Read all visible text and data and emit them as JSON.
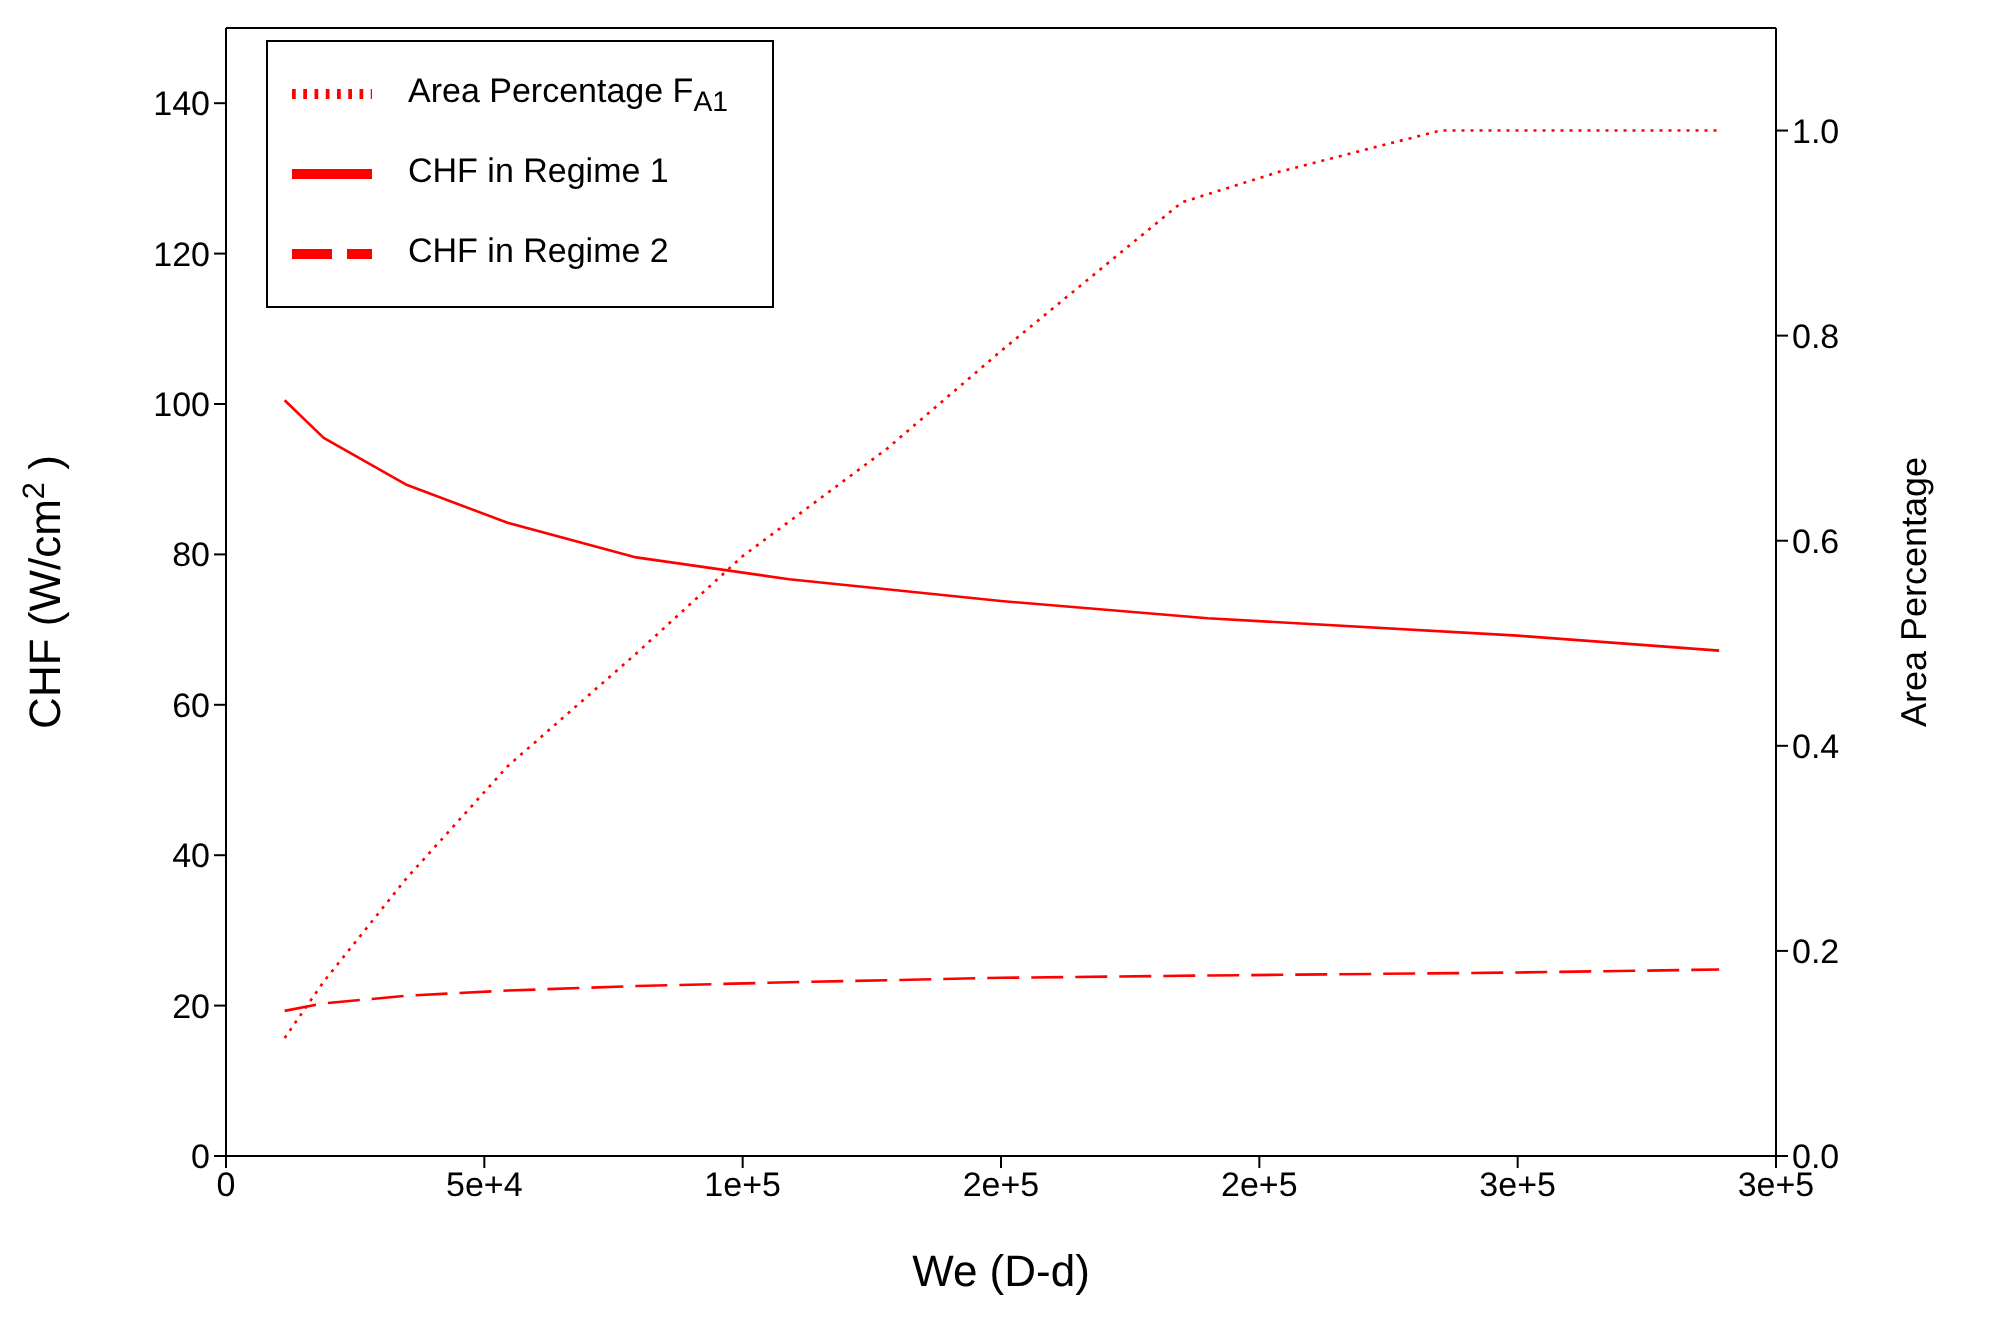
{
  "chart_data": {
    "type": "line",
    "xlabel": "We (D-d)",
    "ylabel": "CHF (W/cm$^{2}$)",
    "y2label": "Area Percentage",
    "xlim": [
      0,
      300000
    ],
    "xticks": [
      0,
      {
        "value": 50000,
        "label": "5e+4"
      },
      {
        "value": 100000,
        "label": "1e+5"
      },
      {
        "value": 150000,
        "label": "2e+5"
      },
      {
        "value": 200000,
        "label": "2e+5"
      },
      {
        "value": 250000,
        "label": "3e+5"
      },
      {
        "value": 300000,
        "label": "3e+5"
      }
    ],
    "ylim": [
      0,
      150
    ],
    "yticks": [
      0,
      20,
      40,
      60,
      80,
      100,
      120,
      140
    ],
    "y2lim": [
      0,
      1.1
    ],
    "y2ticks": [
      {
        "value": 0,
        "label": "0.0"
      },
      0.2,
      0.4,
      0.6,
      0.8,
      {
        "value": 1,
        "label": "1.0"
      }
    ],
    "legend": "top left",
    "marker": "none",
    "series": [
      {
        "name": "CHF in Regime 1",
        "color": "#ff0000",
        "line_style": "solid",
        "x": [
          11350,
          18900,
          34800,
          54500,
          79400,
          109000,
          150000,
          190000,
          250000,
          289000
        ],
        "values": [
          100.5,
          95.5,
          89.3,
          84.2,
          79.6,
          76.7,
          73.8,
          71.5,
          69.2,
          67.2
        ]
      },
      {
        "name": "CHF in Regime 2",
        "color": "#ff0000",
        "line_style": "dashed",
        "x": [
          11350,
          18900,
          34800,
          54500,
          79400,
          109000,
          150000,
          190000,
          250000,
          289000
        ],
        "values": [
          19.3,
          20.3,
          21.3,
          22.0,
          22.6,
          23.1,
          23.7,
          24.0,
          24.4,
          24.8
        ]
      },
      {
        "name": "Area Percentage F$_{A1}$",
        "color": "#ff0000",
        "line_style": "dotted",
        "axis": "y2",
        "x": [
          11350,
          18900,
          34800,
          54500,
          79400,
          100000,
          128000,
          150000,
          185000,
          204000,
          235000,
          289000
        ],
        "values": [
          0.115,
          0.17,
          0.27,
          0.38,
          0.49,
          0.585,
          0.69,
          0.785,
          0.93,
          0.96,
          1.0,
          1.0
        ]
      }
    ]
  }
}
